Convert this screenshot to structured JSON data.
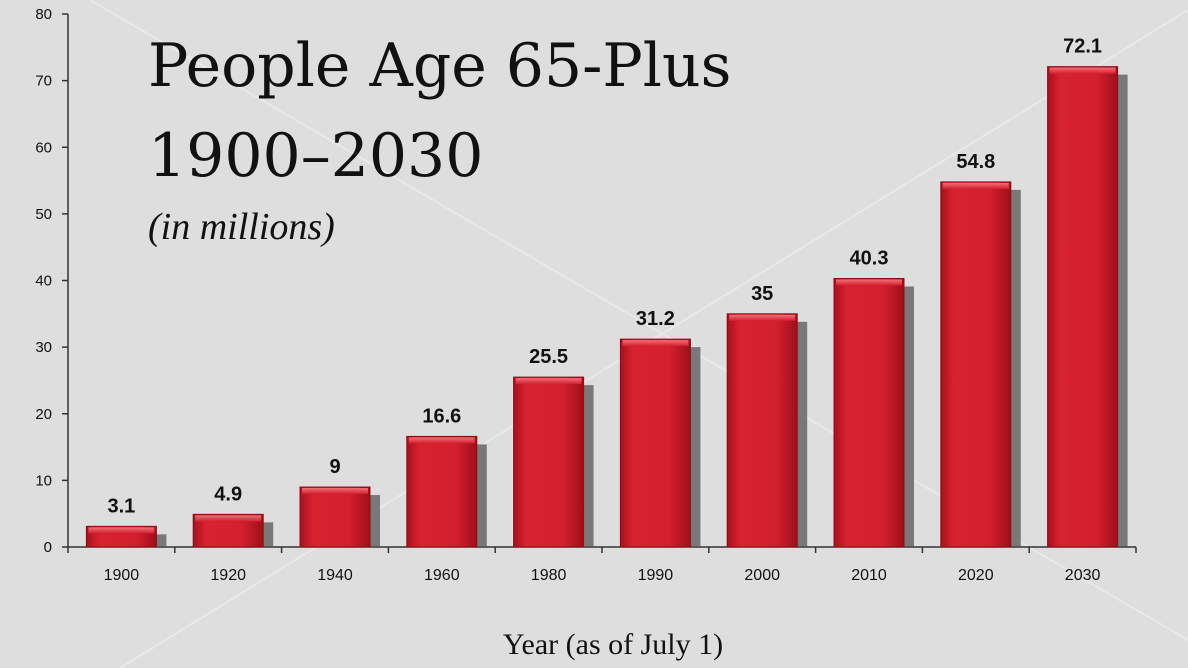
{
  "chart_data": {
    "type": "bar",
    "title_line1": "People Age 65-Plus",
    "title_line2": "1900–2030",
    "subtitle": "(in millions)",
    "xlabel": "Year (as of July 1)",
    "ylabel": "",
    "categories": [
      "1900",
      "1920",
      "1940",
      "1960",
      "1980",
      "1990",
      "2000",
      "2010",
      "2020",
      "2030"
    ],
    "values": [
      3.1,
      4.9,
      9,
      16.6,
      25.5,
      31.2,
      35,
      40.3,
      54.8,
      72.1
    ],
    "value_labels": [
      "3.1",
      "4.9",
      "9",
      "16.6",
      "25.5",
      "31.2",
      "35",
      "40.3",
      "54.8",
      "72.1"
    ],
    "ylim": [
      0,
      80
    ],
    "yticks": [
      "0",
      "10",
      "20",
      "30",
      "40",
      "50",
      "60",
      "70",
      "80"
    ],
    "grid": false,
    "bar_color": "#d41f2e",
    "shadow_color": "#555555"
  }
}
